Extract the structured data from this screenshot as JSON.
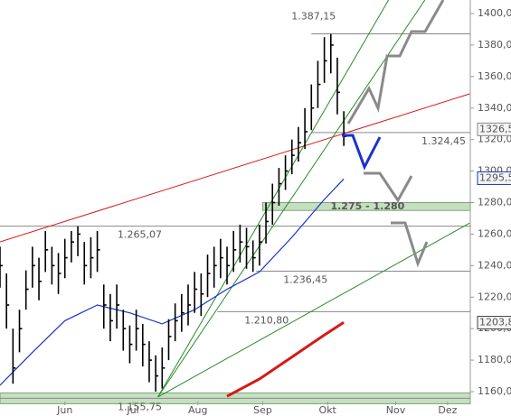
{
  "chart_data": {
    "type": "ohlc",
    "xlim": [
      0,
      145
    ],
    "ylim": [
      1153.7,
      1408.6
    ],
    "yticks": [
      {
        "value": 1160,
        "label": "1160,00"
      },
      {
        "value": 1180,
        "label": "1180,00"
      },
      {
        "value": 1200,
        "label": "1200,00"
      },
      {
        "value": 1220,
        "label": "1220,00"
      },
      {
        "value": 1240,
        "label": "1240,00"
      },
      {
        "value": 1260,
        "label": "1260,00"
      },
      {
        "value": 1280,
        "label": "1280,00"
      },
      {
        "value": 1300,
        "label": "1300,00"
      },
      {
        "value": 1320,
        "label": "1320,00"
      },
      {
        "value": 1340,
        "label": "1340,00"
      },
      {
        "value": 1360,
        "label": "1360,00"
      },
      {
        "value": 1380,
        "label": "1380,00"
      },
      {
        "value": 1400,
        "label": "1400,00"
      }
    ],
    "xticks": [
      {
        "value": 20,
        "label": "Jun"
      },
      {
        "value": 41,
        "label": "Jul"
      },
      {
        "value": 61,
        "label": "Aug"
      },
      {
        "value": 81,
        "label": "Sep"
      },
      {
        "value": 101,
        "label": "Okt"
      },
      {
        "value": 122,
        "label": "Nov"
      },
      {
        "value": 138,
        "label": "Dez"
      }
    ],
    "x": [
      0,
      2,
      4,
      6,
      8,
      10,
      12,
      14,
      16,
      18,
      20,
      22,
      24,
      26,
      28,
      30,
      32,
      34,
      36,
      38,
      40,
      42,
      44,
      46,
      48,
      50,
      52,
      54,
      56,
      58,
      60,
      62,
      64,
      66,
      68,
      70,
      72,
      74,
      76,
      78,
      80,
      82,
      84,
      86,
      88,
      90,
      92,
      94,
      96,
      98,
      100,
      102,
      104,
      106
    ],
    "high": [
      1252,
      1235,
      1200,
      1212,
      1237,
      1252,
      1245,
      1262,
      1252,
      1248,
      1257,
      1262,
      1265,
      1255,
      1258,
      1262,
      1228,
      1222,
      1228,
      1212,
      1202,
      1212,
      1203,
      1192,
      1183,
      1188,
      1206,
      1216,
      1222,
      1228,
      1236,
      1235,
      1247,
      1252,
      1257,
      1252,
      1262,
      1266,
      1264,
      1256,
      1266,
      1280,
      1292,
      1302,
      1310,
      1320,
      1328,
      1340,
      1355,
      1370,
      1385,
      1387,
      1372,
      1338
    ],
    "low": [
      1226,
      1200,
      1165,
      1185,
      1212,
      1226,
      1218,
      1236,
      1228,
      1222,
      1232,
      1242,
      1246,
      1228,
      1232,
      1236,
      1200,
      1192,
      1200,
      1186,
      1178,
      1186,
      1176,
      1166,
      1160,
      1162,
      1180,
      1192,
      1198,
      1202,
      1210,
      1208,
      1220,
      1226,
      1232,
      1228,
      1236,
      1242,
      1238,
      1236,
      1240,
      1254,
      1266,
      1278,
      1288,
      1298,
      1306,
      1314,
      1326,
      1340,
      1356,
      1362,
      1336,
      1316
    ],
    "close": [
      1240,
      1215,
      1175,
      1200,
      1225,
      1240,
      1230,
      1250,
      1240,
      1235,
      1245,
      1255,
      1260,
      1240,
      1245,
      1250,
      1215,
      1205,
      1215,
      1200,
      1190,
      1200,
      1190,
      1180,
      1170,
      1175,
      1195,
      1205,
      1210,
      1215,
      1225,
      1222,
      1235,
      1240,
      1245,
      1240,
      1250,
      1255,
      1252,
      1245,
      1255,
      1268,
      1280,
      1292,
      1300,
      1310,
      1318,
      1325,
      1340,
      1355,
      1370,
      1380,
      1350,
      1322
    ],
    "averages": [
      {
        "color": "#1a33c8",
        "x": [
          0,
          10,
          20,
          30,
          40,
          50,
          60,
          70,
          80,
          90,
          100,
          106
        ],
        "values": [
          1164,
          1185,
          1205,
          1215,
          1210,
          1203,
          1212,
          1225,
          1236,
          1258,
          1282,
          1295
        ]
      },
      {
        "color": "#d81818",
        "x": [
          70,
          80,
          90,
          100,
          106
        ],
        "values": [
          1157,
          1168,
          1182,
          1196,
          1204
        ]
      }
    ],
    "trendlines": [
      {
        "color": "#d81818",
        "x": [
          0,
          144.8
        ],
        "values": [
          1255.1,
          1349
        ]
      },
      {
        "color": "#2a8a2a",
        "x": [
          48.7,
          119.8
        ],
        "values": [
          1156.6,
          1408.6
        ]
      },
      {
        "color": "#2a8a2a",
        "x": [
          48.7,
          131
        ],
        "values": [
          1156.6,
          1408.6
        ]
      },
      {
        "color": "#2a8a2a",
        "x": [
          48.7,
          144.8
        ],
        "values": [
          1156.6,
          1267
        ]
      }
    ],
    "levels": [
      {
        "value": 1387.15,
        "label": "1.387,15",
        "x0": 96
      },
      {
        "value": 1324.45,
        "label": "1.324,45",
        "x0": 96
      },
      {
        "value": 1265.07,
        "label": "1.265,07",
        "x0": 0
      },
      {
        "value": 1236.45,
        "label": "1.236,45",
        "x0": 79
      },
      {
        "value": 1210.8,
        "label": "1.210,80",
        "x0": 67
      },
      {
        "value": 1155.75,
        "label": "1.155,75",
        "x0": 0
      }
    ],
    "zone": {
      "values": [
        1275,
        1280
      ],
      "label": "1.275 - 1.280",
      "x0": 81
    },
    "last_values": [
      {
        "value": 1326.5,
        "label": "1326,5",
        "color": "#888888"
      },
      {
        "value": 1295.5,
        "label": "1295,5",
        "color": "#1a33c8"
      },
      {
        "value": 1203.8,
        "label": "1203,8",
        "color": "#444444"
      }
    ]
  }
}
